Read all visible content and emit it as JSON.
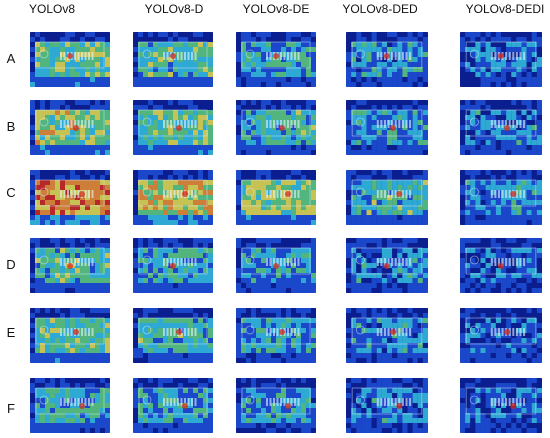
{
  "columns": [
    {
      "label": "YOLOv8",
      "warmth": 1.0
    },
    {
      "label": "YOLOv8-D",
      "warmth": 0.8
    },
    {
      "label": "YOLOv8-DE",
      "warmth": 0.6
    },
    {
      "label": "YOLOv8-DED",
      "warmth": 0.4
    },
    {
      "label": "YOLOv8-DEDI",
      "warmth": 0.2
    }
  ],
  "rows": [
    {
      "label": "A",
      "base": 0.45
    },
    {
      "label": "B",
      "base": 0.55
    },
    {
      "label": "C",
      "base": 0.85
    },
    {
      "label": "D",
      "base": 0.35
    },
    {
      "label": "E",
      "base": 0.4
    },
    {
      "label": "F",
      "base": 0.3
    }
  ],
  "colors": {
    "deep_blue": "#0a1f8f",
    "blue": "#1f4fd6",
    "cyan": "#35c2e0",
    "green": "#5fd07a",
    "yellow": "#e8e04a",
    "orange": "#f0902a",
    "red": "#d62a1a"
  }
}
